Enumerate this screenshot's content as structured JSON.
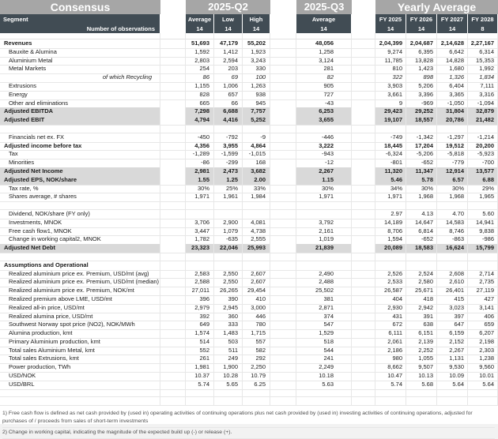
{
  "header": {
    "consensus_title": "Consensus",
    "q2_title": "2025-Q2",
    "q3_title": "2025-Q3",
    "yearly_title": "Yearly Average",
    "segment_label": "Segment",
    "obs_label": "Number of observations",
    "q2_cols": [
      "Average",
      "Low",
      "High"
    ],
    "q3_col": "Average",
    "fy_cols": [
      "FY 2025",
      "FY 2026",
      "FY 2027",
      "FY 2028"
    ],
    "obs_q2": [
      "14",
      "14",
      "14"
    ],
    "obs_q3": "14",
    "obs_fy": [
      "14",
      "14",
      "14",
      "8"
    ]
  },
  "colors": {
    "band_gray": "#a6a6a6",
    "header_dark": "#414c54",
    "row_highlight": "#d9d9d9",
    "gridline": "#e7e7e7"
  },
  "table": {
    "rows": [
      {
        "label": "Revenues",
        "style": "bold",
        "values": [
          "51,693",
          "47,179",
          "55,202",
          "48,056",
          "2,04,399",
          "2,04,687",
          "2,14,628",
          "2,27,167"
        ]
      },
      {
        "label": "Bauxite & Alumina",
        "style": "item",
        "values": [
          "1,592",
          "1,412",
          "1,923",
          "1,258",
          "9,274",
          "6,395",
          "6,642",
          "6,314"
        ]
      },
      {
        "label": "Aluminium Metal",
        "style": "item",
        "values": [
          "2,803",
          "2,594",
          "3,243",
          "3,124",
          "11,785",
          "13,828",
          "14,828",
          "15,353"
        ]
      },
      {
        "label": "Metal Markets",
        "style": "item",
        "values": [
          "254",
          "203",
          "330",
          "281",
          "810",
          "1,423",
          "1,680",
          "1,992"
        ]
      },
      {
        "label": "of which Recycling",
        "style": "italic",
        "values": [
          "86",
          "69",
          "100",
          "82",
          "322",
          "898",
          "1,326",
          "1,834"
        ]
      },
      {
        "label": "Extrusions",
        "style": "item",
        "values": [
          "1,155",
          "1,006",
          "1,263",
          "905",
          "3,903",
          "5,206",
          "6,404",
          "7,111"
        ]
      },
      {
        "label": "Energy",
        "style": "item",
        "values": [
          "828",
          "657",
          "938",
          "727",
          "3,661",
          "3,396",
          "3,365",
          "3,316"
        ]
      },
      {
        "label": "Other and eliminations",
        "style": "item",
        "values": [
          "665",
          "66",
          "945",
          "-43",
          "9",
          "-969",
          "-1,050",
          "-1,094"
        ]
      },
      {
        "label": "Adjusted EBITDA",
        "style": "gray",
        "values": [
          "7,298",
          "6,688",
          "7,757",
          "6,253",
          "29,423",
          "29,252",
          "31,804",
          "32,879"
        ]
      },
      {
        "label": "Adjusted EBIT",
        "style": "gray",
        "values": [
          "4,794",
          "4,416",
          "5,252",
          "3,655",
          "19,107",
          "18,557",
          "20,786",
          "21,482"
        ]
      },
      {
        "label": "",
        "style": "blank",
        "values": [
          "",
          "",
          "",
          "",
          "",
          "",
          "",
          ""
        ]
      },
      {
        "label": "Financials net ex. FX",
        "style": "item",
        "values": [
          "-450",
          "-792",
          "-9",
          "-446",
          "-749",
          "-1,342",
          "-1,297",
          "-1,214"
        ]
      },
      {
        "label": "Adjusted income before tax",
        "style": "bold",
        "values": [
          "4,356",
          "3,955",
          "4,864",
          "3,222",
          "18,445",
          "17,204",
          "19,512",
          "20,200"
        ]
      },
      {
        "label": "Tax",
        "style": "item",
        "values": [
          "-1,289",
          "-1,599",
          "-1,015",
          "-943",
          "-6,324",
          "-5,206",
          "-5,818",
          "-5,923"
        ]
      },
      {
        "label": "Minorities",
        "style": "item",
        "values": [
          "-86",
          "-299",
          "168",
          "-12",
          "-801",
          "-652",
          "-779",
          "-700"
        ]
      },
      {
        "label": "Adjusted Net Income",
        "style": "gray",
        "values": [
          "2,981",
          "2,473",
          "3,682",
          "2,267",
          "11,320",
          "11,347",
          "12,914",
          "13,577"
        ]
      },
      {
        "label": "Adjusted EPS, NOK/share",
        "style": "gray",
        "values": [
          "1.55",
          "1.25",
          "2.00",
          "1.15",
          "5.46",
          "5.78",
          "6.57",
          "6.88"
        ]
      },
      {
        "label": "Tax rate, %",
        "style": "item",
        "values": [
          "30%",
          "25%",
          "33%",
          "30%",
          "34%",
          "30%",
          "30%",
          "29%"
        ]
      },
      {
        "label": "Shares average, # shares",
        "style": "item",
        "values": [
          "1,971",
          "1,961",
          "1,984",
          "1,971",
          "1,971",
          "1,968",
          "1,968",
          "1,965"
        ]
      },
      {
        "label": "",
        "style": "blank",
        "values": [
          "",
          "",
          "",
          "",
          "",
          "",
          "",
          ""
        ]
      },
      {
        "label": "Dividend, NOK/share (FY only)",
        "style": "item",
        "values": [
          "",
          "",
          "",
          "",
          "2.97",
          "4.13",
          "4.70",
          "5.60"
        ]
      },
      {
        "label": "Investments, MNOK",
        "style": "item",
        "values": [
          "3,706",
          "2,900",
          "4,081",
          "3,792",
          "14,189",
          "14,647",
          "14,583",
          "14,941"
        ]
      },
      {
        "label": "Free cash flow1, MNOK",
        "style": "item",
        "values": [
          "3,447",
          "1,079",
          "4,738",
          "2,161",
          "8,706",
          "6,814",
          "8,746",
          "9,838"
        ]
      },
      {
        "label": "Change in working capital2, MNOK",
        "style": "item",
        "values": [
          "1,782",
          "-635",
          "2,555",
          "1,019",
          "1,594",
          "-652",
          "-863",
          "-986"
        ]
      },
      {
        "label": "Adjusted Net Debt",
        "style": "gray",
        "values": [
          "23,323",
          "22,046",
          "25,993",
          "21,839",
          "20,089",
          "18,583",
          "16,624",
          "15,799"
        ]
      },
      {
        "label": "",
        "style": "blank",
        "values": [
          "",
          "",
          "",
          "",
          "",
          "",
          "",
          ""
        ]
      },
      {
        "label": "Assumptions and Operational",
        "style": "section",
        "values": [
          "",
          "",
          "",
          "",
          "",
          "",
          "",
          ""
        ]
      },
      {
        "label": "Realized aluminium price ex. Premium, USD/mt (avg)",
        "style": "item",
        "values": [
          "2,583",
          "2,550",
          "2,607",
          "2,490",
          "2,526",
          "2,524",
          "2,608",
          "2,714"
        ]
      },
      {
        "label": "Realized aluminium price ex. Premium, USD/mt (median)",
        "style": "item",
        "values": [
          "2,588",
          "2,550",
          "2,607",
          "2,488",
          "2,533",
          "2,580",
          "2,610",
          "2,735"
        ]
      },
      {
        "label": "Realized aluminium price ex. Premium, NOK/mt",
        "style": "item",
        "values": [
          "27,011",
          "26,265",
          "29,454",
          "25,502",
          "26,587",
          "25,671",
          "26,401",
          "27,119"
        ]
      },
      {
        "label": "Realized premium above LME, USD/mt",
        "style": "item",
        "values": [
          "396",
          "390",
          "410",
          "381",
          "404",
          "418",
          "415",
          "427"
        ]
      },
      {
        "label": "Realized all-in price, USD/mt",
        "style": "item",
        "values": [
          "2,979",
          "2,945",
          "3,000",
          "2,871",
          "2,930",
          "2,942",
          "3,023",
          "3,141"
        ]
      },
      {
        "label": "Realized alumina price, USD/mt",
        "style": "item",
        "values": [
          "392",
          "360",
          "446",
          "374",
          "431",
          "391",
          "397",
          "406"
        ]
      },
      {
        "label": "Southwest Norway spot price (NO2), NOK/MWh",
        "style": "item",
        "values": [
          "649",
          "333",
          "780",
          "547",
          "672",
          "638",
          "647",
          "659"
        ]
      },
      {
        "label": "Alumina production, kmt",
        "style": "item",
        "values": [
          "1,574",
          "1,483",
          "1,715",
          "1,529",
          "6,111",
          "6,151",
          "6,159",
          "6,207"
        ]
      },
      {
        "label": "Primary Aluminium production, kmt",
        "style": "item",
        "values": [
          "514",
          "503",
          "557",
          "518",
          "2,061",
          "2,139",
          "2,152",
          "2,198"
        ]
      },
      {
        "label": "Total sales Aluminium Metal, kmt",
        "style": "item",
        "values": [
          "552",
          "511",
          "582",
          "544",
          "2,186",
          "2,252",
          "2,267",
          "2,303"
        ]
      },
      {
        "label": "Total sales Extrusions, kmt",
        "style": "item",
        "values": [
          "261",
          "249",
          "292",
          "241",
          "980",
          "1,055",
          "1,131",
          "1,238"
        ]
      },
      {
        "label": "Power production, TWh",
        "style": "item",
        "values": [
          "1,981",
          "1,900",
          "2,250",
          "2,249",
          "8,662",
          "9,507",
          "9,530",
          "9,560"
        ]
      },
      {
        "label": "USD/NOK",
        "style": "item",
        "values": [
          "10.37",
          "10.28",
          "10.79",
          "10.18",
          "10.47",
          "10.13",
          "10.09",
          "10.01"
        ]
      },
      {
        "label": "USD/BRL",
        "style": "item",
        "values": [
          "5.74",
          "5.65",
          "6.25",
          "5.63",
          "5.74",
          "5.68",
          "5.64",
          "5.64"
        ]
      },
      {
        "label": "",
        "style": "blank",
        "values": [
          "",
          "",
          "",
          "",
          "",
          "",
          "",
          ""
        ]
      },
      {
        "label": "",
        "style": "blank",
        "values": [
          "",
          "",
          "",
          "",
          "",
          "",
          "",
          ""
        ]
      }
    ]
  },
  "footnotes": [
    "1) Free cash flow is defined as net cash provided by (used in) operating activities of continuing operations plus net cash provided by (used in) investing activities of continuing operations, adjusted for purchases of / proceeds from sales of short-term investments",
    "2) Change in working capital, indicating the magnitude of the expected build up (-) or release (+)."
  ]
}
